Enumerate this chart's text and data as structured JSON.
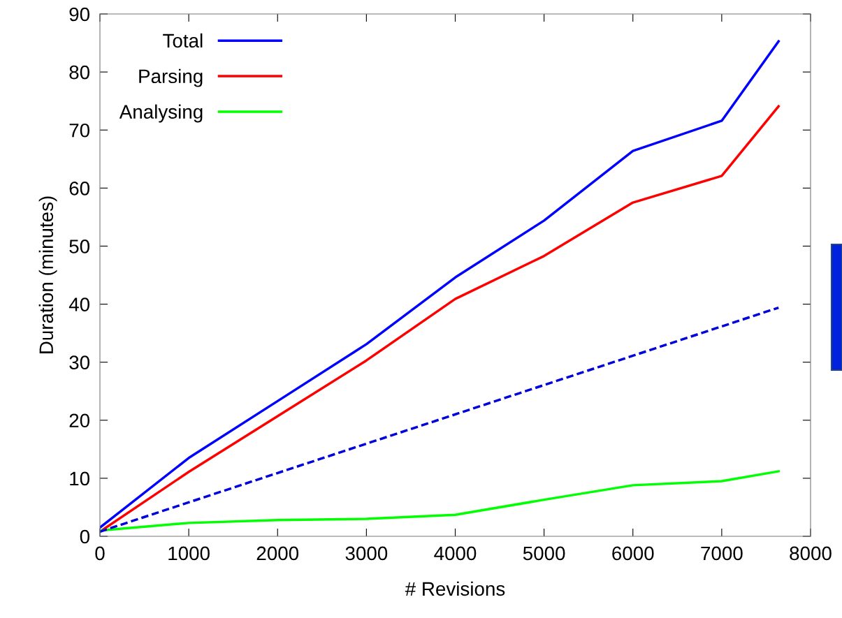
{
  "chart_data": {
    "type": "line",
    "xlabel": "# Revisions",
    "ylabel": "Duration (minutes)",
    "xlim": [
      0,
      8000
    ],
    "xticks": [
      0,
      1000,
      2000,
      3000,
      4000,
      5000,
      6000,
      7000,
      8000
    ],
    "ylim": [
      0,
      90
    ],
    "yticks": [
      0,
      10,
      20,
      30,
      40,
      50,
      60,
      70,
      80,
      90
    ],
    "grid": false,
    "legend": "top left",
    "marker": "none",
    "series": [
      {
        "name": "Total",
        "color": "#0000ff",
        "line_style": "solid",
        "x": [
          0,
          1000,
          2000,
          3000,
          4000,
          5000,
          6000,
          7000,
          7640
        ],
        "values": [
          1.5,
          13.5,
          23.3,
          33.1,
          44.6,
          54.4,
          66.4,
          71.6,
          85.3
        ]
      },
      {
        "name": "Parsing",
        "color": "#ff0000",
        "line_style": "solid",
        "x": [
          0,
          1000,
          2000,
          3000,
          4000,
          5000,
          6000,
          7000,
          7640
        ],
        "values": [
          0.8,
          11.1,
          20.7,
          30.3,
          40.9,
          48.3,
          57.5,
          62.1,
          74.1
        ]
      },
      {
        "name": "Analysing",
        "color": "#00ff00",
        "line_style": "solid",
        "x": [
          0,
          1000,
          2000,
          3000,
          4000,
          5000,
          6000,
          7000,
          7640
        ],
        "values": [
          1.0,
          2.3,
          2.8,
          3.0,
          3.7,
          6.3,
          8.8,
          9.5,
          11.2
        ]
      },
      {
        "color": "#0000dd",
        "line_style": "dashed",
        "x": [
          0,
          7640
        ],
        "values": [
          0.8,
          39.4
        ]
      }
    ]
  }
}
